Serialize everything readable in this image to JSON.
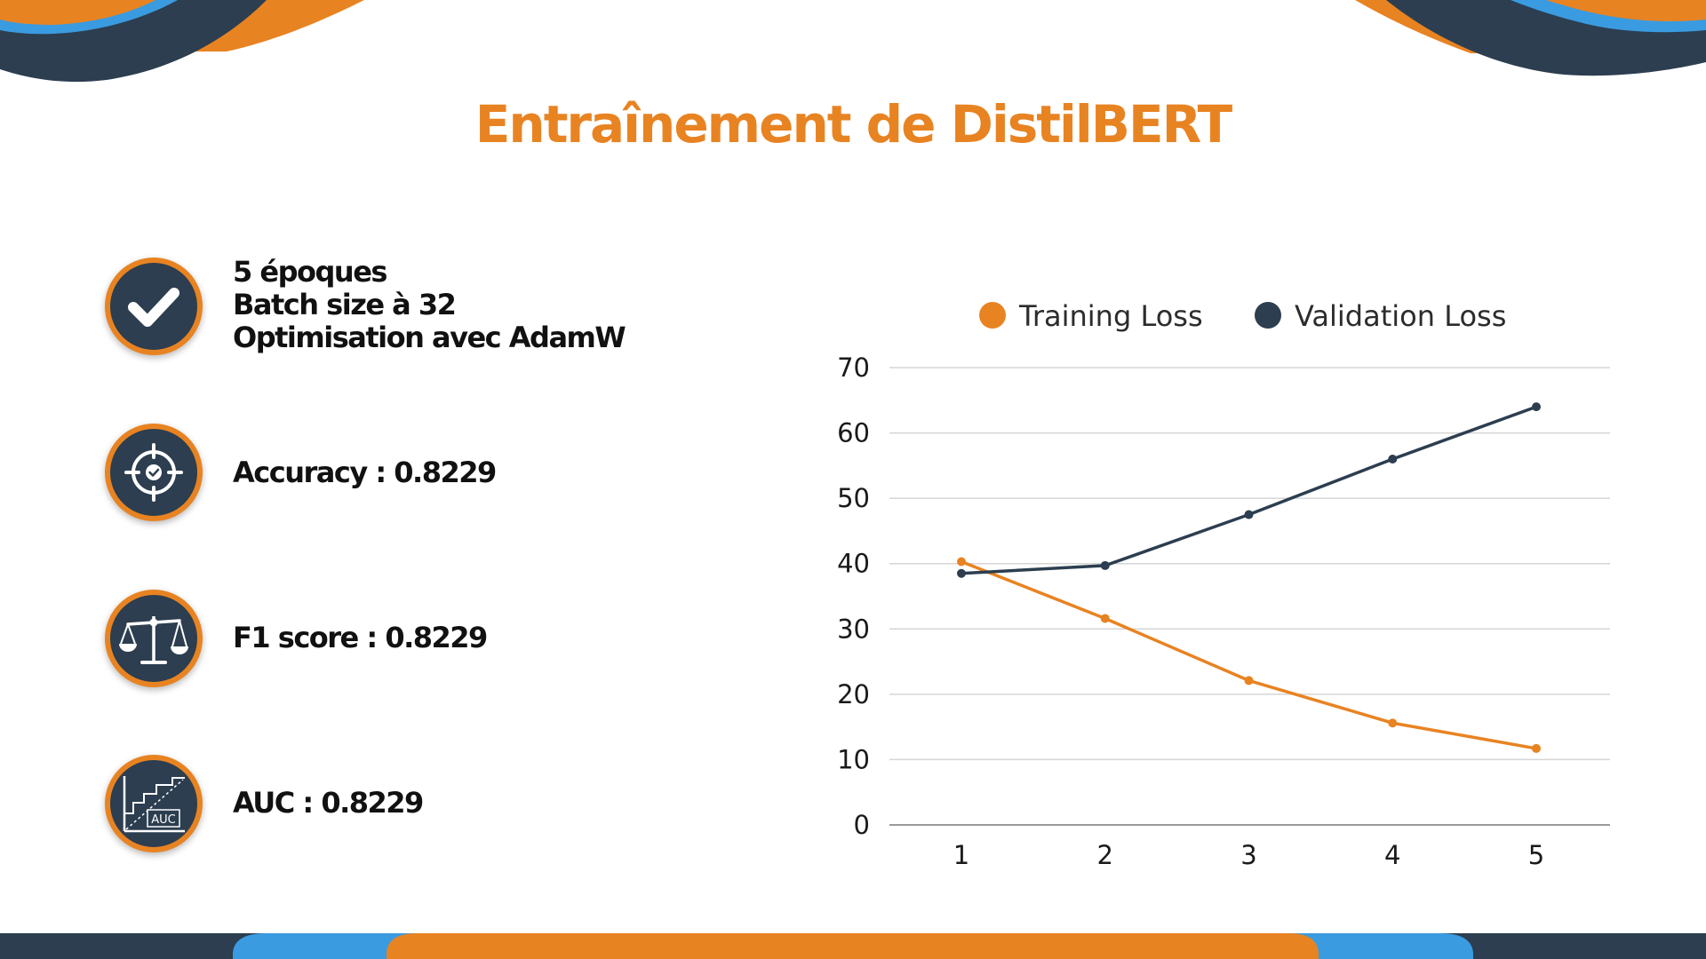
{
  "slide": {
    "title": "Entraînement de DistilBERT",
    "colors": {
      "orange": "#e88322",
      "navy": "#2c3e50",
      "blue": "#3a9be0"
    }
  },
  "metrics": [
    {
      "icon": "checkmark-icon",
      "lines": [
        "5 époques",
        "Batch size à 32",
        "Optimisation avec AdamW"
      ]
    },
    {
      "icon": "target-icon",
      "lines": [
        "Accuracy : 0.8229"
      ]
    },
    {
      "icon": "balance-scale-icon",
      "lines": [
        "F1 score : 0.8229"
      ]
    },
    {
      "icon": "auc-curve-icon",
      "lines": [
        "AUC : 0.8229"
      ]
    }
  ],
  "chart_data": {
    "type": "line",
    "x": [
      1,
      2,
      3,
      4,
      5
    ],
    "series": [
      {
        "name": "Training Loss",
        "color": "#e88322",
        "values": [
          40.3,
          31.6,
          22.1,
          15.6,
          11.7
        ]
      },
      {
        "name": "Validation Loss",
        "color": "#2c3e50",
        "values": [
          38.5,
          39.7,
          47.5,
          56.0,
          64.0
        ]
      }
    ],
    "ylim": [
      0,
      70
    ],
    "yticks": [
      0,
      10,
      20,
      30,
      40,
      50,
      60,
      70
    ],
    "grid": true,
    "legend": "top",
    "title": "",
    "xlabel": "",
    "ylabel": ""
  }
}
